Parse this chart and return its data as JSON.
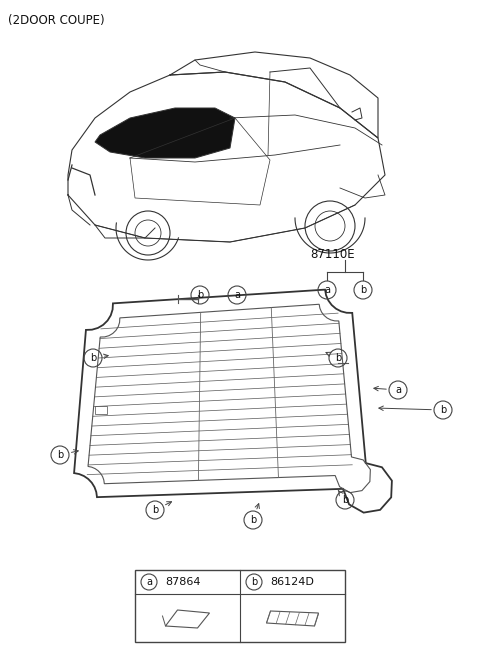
{
  "title": "(2DOOR COUPE)",
  "bg_color": "#ffffff",
  "part_number_main": "87110E",
  "legend": [
    {
      "label": "a",
      "part": "87864"
    },
    {
      "label": "b",
      "part": "86124D"
    }
  ]
}
